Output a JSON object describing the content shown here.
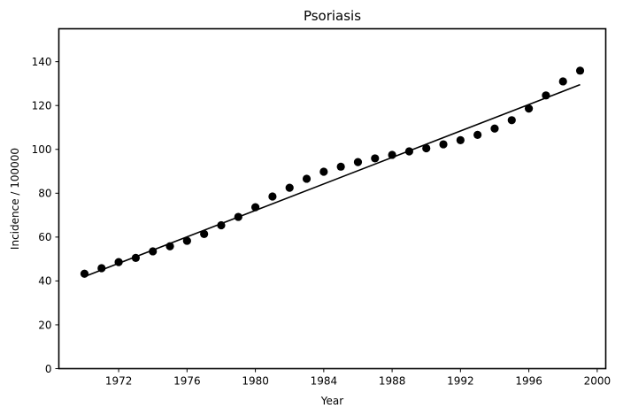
{
  "chart_data": {
    "type": "scatter",
    "title": "Psoriasis",
    "xlabel": "Year",
    "ylabel": "Incidence / 100000",
    "xlim": [
      1968.5,
      2000.5
    ],
    "ylim": [
      0,
      155
    ],
    "xticks": [
      1972,
      1976,
      1980,
      1984,
      1988,
      1992,
      1996,
      2000
    ],
    "yticks": [
      0,
      20,
      40,
      60,
      80,
      100,
      120,
      140
    ],
    "grid": false,
    "legend": "none",
    "colors": {
      "points": "#000000",
      "line": "#000000"
    },
    "series": [
      {
        "type": "scatter",
        "x": [
          1970,
          1971,
          1972,
          1973,
          1974,
          1975,
          1976,
          1977,
          1978,
          1979,
          1980,
          1981,
          1982,
          1983,
          1984,
          1985,
          1986,
          1987,
          1988,
          1989,
          1990,
          1991,
          1992,
          1993,
          1994,
          1995,
          1996,
          1997,
          1998,
          1999
        ],
        "y": [
          43.3,
          45.8,
          48.6,
          50.5,
          53.5,
          55.8,
          58.3,
          61.4,
          65.4,
          69.2,
          73.6,
          78.5,
          82.5,
          86.6,
          89.8,
          92.1,
          94.2,
          95.9,
          97.5,
          99.1,
          100.5,
          102.3,
          104.2,
          106.6,
          109.5,
          113.3,
          118.6,
          124.6,
          131.0,
          135.9
        ]
      },
      {
        "type": "line",
        "x": [
          1970,
          1999
        ],
        "y": [
          42.0,
          129.5
        ]
      }
    ]
  }
}
